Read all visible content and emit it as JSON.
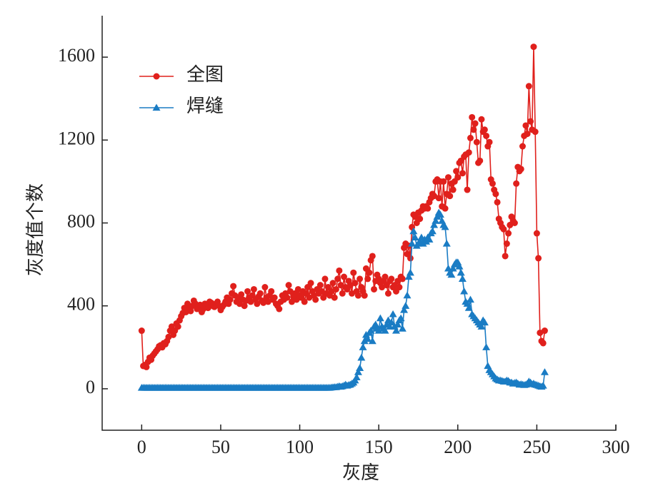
{
  "chart_data": {
    "type": "line",
    "xlabel": "灰度",
    "ylabel": "灰度值个数",
    "xlim": [
      -25,
      300
    ],
    "xticks": [
      0,
      50,
      100,
      150,
      200,
      250,
      300
    ],
    "ylim": [
      -200,
      1800
    ],
    "yticks": [
      0,
      400,
      800,
      1200,
      1600
    ],
    "legend": "upper left",
    "x": [
      0,
      1,
      2,
      3,
      4,
      5,
      6,
      7,
      8,
      9,
      10,
      11,
      12,
      13,
      14,
      15,
      16,
      17,
      18,
      19,
      20,
      21,
      22,
      23,
      24,
      25,
      26,
      27,
      28,
      29,
      30,
      31,
      32,
      33,
      34,
      35,
      36,
      37,
      38,
      39,
      40,
      41,
      42,
      43,
      44,
      45,
      46,
      47,
      48,
      49,
      50,
      51,
      52,
      53,
      54,
      55,
      56,
      57,
      58,
      59,
      60,
      61,
      62,
      63,
      64,
      65,
      66,
      67,
      68,
      69,
      70,
      71,
      72,
      73,
      74,
      75,
      76,
      77,
      78,
      79,
      80,
      81,
      82,
      83,
      84,
      85,
      86,
      87,
      88,
      89,
      90,
      91,
      92,
      93,
      94,
      95,
      96,
      97,
      98,
      99,
      100,
      101,
      102,
      103,
      104,
      105,
      106,
      107,
      108,
      109,
      110,
      111,
      112,
      113,
      114,
      115,
      116,
      117,
      118,
      119,
      120,
      121,
      122,
      123,
      124,
      125,
      126,
      127,
      128,
      129,
      130,
      131,
      132,
      133,
      134,
      135,
      136,
      137,
      138,
      139,
      140,
      141,
      142,
      143,
      144,
      145,
      146,
      147,
      148,
      149,
      150,
      151,
      152,
      153,
      154,
      155,
      156,
      157,
      158,
      159,
      160,
      161,
      162,
      163,
      164,
      165,
      166,
      167,
      168,
      169,
      170,
      171,
      172,
      173,
      174,
      175,
      176,
      177,
      178,
      179,
      180,
      181,
      182,
      183,
      184,
      185,
      186,
      187,
      188,
      189,
      190,
      191,
      192,
      193,
      194,
      195,
      196,
      197,
      198,
      199,
      200,
      201,
      202,
      203,
      204,
      205,
      206,
      207,
      208,
      209,
      210,
      211,
      212,
      213,
      214,
      215,
      216,
      217,
      218,
      219,
      220,
      221,
      222,
      223,
      224,
      225,
      226,
      227,
      228,
      229,
      230,
      231,
      232,
      233,
      234,
      235,
      236,
      237,
      238,
      239,
      240,
      241,
      242,
      243,
      244,
      245,
      246,
      247,
      248,
      249,
      250,
      251,
      252,
      253,
      254,
      255
    ],
    "series": [
      {
        "name": "全图",
        "color": "#e0201c",
        "marker": "circle",
        "values": [
          280,
          110,
          115,
          105,
          130,
          150,
          140,
          160,
          170,
          180,
          190,
          205,
          210,
          200,
          220,
          215,
          230,
          250,
          280,
          300,
          260,
          280,
          315,
          300,
          330,
          350,
          365,
          390,
          370,
          410,
          390,
          375,
          400,
          425,
          410,
          385,
          395,
          405,
          370,
          385,
          410,
          400,
          390,
          420,
          415,
          400,
          395,
          410,
          420,
          400,
          380,
          395,
          405,
          420,
          440,
          410,
          430,
          460,
          495,
          450,
          420,
          440,
          410,
          455,
          430,
          400,
          425,
          470,
          440,
          420,
          450,
          480,
          430,
          410,
          445,
          460,
          425,
          415,
          490,
          440,
          420,
          450,
          470,
          430,
          440,
          410,
          400,
          385,
          420,
          450,
          430,
          460,
          440,
          500,
          470,
          420,
          445,
          460,
          430,
          480,
          450,
          440,
          470,
          420,
          460,
          490,
          440,
          510,
          470,
          450,
          430,
          480,
          460,
          500,
          470,
          440,
          530,
          460,
          490,
          450,
          470,
          510,
          440,
          480,
          530,
          570,
          500,
          460,
          540,
          490,
          480,
          520,
          500,
          460,
          560,
          510,
          470,
          450,
          530,
          490,
          470,
          450,
          580,
          530,
          560,
          620,
          640,
          480,
          520,
          550,
          530,
          510,
          490,
          520,
          540,
          500,
          460,
          520,
          530,
          490,
          500,
          470,
          520,
          490,
          540,
          530,
          680,
          700,
          650,
          690,
          630,
          780,
          840,
          830,
          800,
          850,
          820,
          860,
          880,
          870,
          880,
          870,
          900,
          920,
          940,
          930,
          1000,
          1010,
          920,
          1000,
          880,
          1000,
          870,
          940,
          1020,
          930,
          990,
          960,
          1000,
          1050,
          1020,
          1090,
          1100,
          1040,
          1120,
          1130,
          960,
          1140,
          1210,
          1310,
          1250,
          1280,
          1190,
          1090,
          1100,
          1300,
          1240,
          1250,
          1220,
          1170,
          1190,
          1010,
          990,
          960,
          940,
          900,
          820,
          800,
          780,
          770,
          640,
          700,
          750,
          790,
          830,
          810,
          800,
          990,
          1070,
          1050,
          1060,
          1170,
          1220,
          1270,
          1230,
          1460,
          1290,
          1250,
          1650,
          1240,
          750,
          630,
          270,
          230,
          220,
          280
        ]
      },
      {
        "name": "焊缝",
        "color": "#1a7cc4",
        "marker": "triangle",
        "values": [
          5,
          5,
          5,
          5,
          5,
          5,
          5,
          5,
          5,
          5,
          5,
          5,
          5,
          5,
          5,
          5,
          5,
          5,
          5,
          5,
          5,
          5,
          5,
          5,
          5,
          5,
          5,
          5,
          5,
          5,
          5,
          5,
          5,
          5,
          5,
          5,
          5,
          5,
          5,
          5,
          5,
          5,
          5,
          5,
          5,
          5,
          5,
          5,
          5,
          5,
          5,
          5,
          5,
          5,
          5,
          5,
          5,
          5,
          5,
          5,
          5,
          5,
          5,
          5,
          5,
          5,
          5,
          5,
          5,
          5,
          5,
          5,
          5,
          5,
          5,
          5,
          5,
          5,
          5,
          5,
          5,
          5,
          5,
          5,
          5,
          5,
          5,
          5,
          5,
          5,
          5,
          5,
          5,
          5,
          5,
          5,
          5,
          5,
          5,
          5,
          5,
          5,
          5,
          5,
          5,
          5,
          5,
          5,
          5,
          5,
          5,
          5,
          5,
          5,
          5,
          5,
          5,
          5,
          5,
          5,
          6,
          7,
          8,
          8,
          10,
          12,
          10,
          12,
          15,
          20,
          15,
          18,
          20,
          25,
          30,
          40,
          55,
          80,
          100,
          150,
          200,
          230,
          260,
          240,
          270,
          280,
          230,
          300,
          310,
          290,
          280,
          340,
          300,
          290,
          280,
          310,
          330,
          300,
          320,
          360,
          300,
          280,
          310,
          330,
          340,
          290,
          380,
          400,
          450,
          540,
          560,
          700,
          760,
          730,
          690,
          700,
          710,
          730,
          700,
          720,
          710,
          730,
          720,
          750,
          760,
          790,
          810,
          830,
          850,
          840,
          810,
          790,
          780,
          700,
          580,
          560,
          550,
          580,
          600,
          610,
          610,
          590,
          560,
          530,
          470,
          420,
          410,
          390,
          430,
          360,
          350,
          340,
          330,
          320,
          310,
          300,
          330,
          320,
          200,
          110,
          90,
          80,
          70,
          60,
          50,
          45,
          40,
          40,
          38,
          35,
          35,
          40,
          38,
          30,
          30,
          25,
          28,
          30,
          25,
          20,
          22,
          20,
          18,
          20,
          25,
          35,
          30,
          22,
          25,
          20,
          18,
          15,
          12,
          10,
          15,
          80
        ]
      }
    ]
  }
}
